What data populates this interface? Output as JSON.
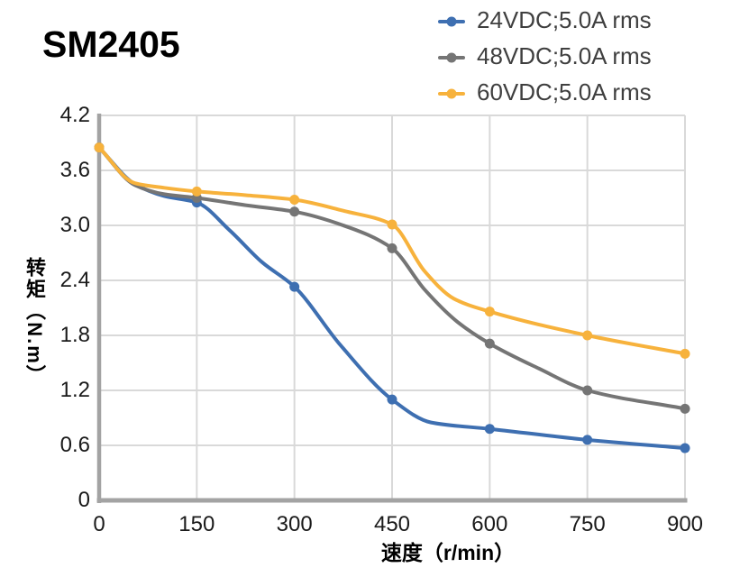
{
  "palette": {
    "grid": "#D9D9D9",
    "axis": "#A3A3A3",
    "tick_text": "#1A1A1A",
    "legend_text": "#3F3F3F",
    "title_text": "#000000",
    "axis_label_text": "#000000",
    "background": "#FFFFFF"
  },
  "chart_data": {
    "type": "line",
    "title": "SM2405",
    "xlabel": "速度（r/min）",
    "ylabel": "转矩（N.m）",
    "xlim": [
      0,
      900
    ],
    "ylim": [
      0,
      4.2
    ],
    "xtick_labels": [
      "0",
      "150",
      "300",
      "450",
      "600",
      "750",
      "900"
    ],
    "ytick_labels": [
      "4.2",
      "3.6",
      "3.0",
      "2.4",
      "1.8",
      "1.2",
      "0.6",
      "0"
    ],
    "ytick_values": [
      4.2,
      3.6,
      3.0,
      2.4,
      1.8,
      1.2,
      0.6,
      0
    ],
    "grid": true,
    "legend_position": "top-right",
    "marker": "circle",
    "smooth_curves": true,
    "categories": [
      0,
      150,
      300,
      450,
      600,
      750,
      900
    ],
    "series": [
      {
        "name": "24VDC;5.0A rms",
        "color": "#3E6FB1",
        "values": [
          3.85,
          3.25,
          2.33,
          1.1,
          0.78,
          0.66,
          0.57
        ],
        "curve_points": [
          [
            0,
            3.85
          ],
          [
            55,
            3.45
          ],
          [
            100,
            3.32
          ],
          [
            150,
            3.25
          ],
          [
            200,
            2.95
          ],
          [
            250,
            2.6
          ],
          [
            300,
            2.33
          ],
          [
            370,
            1.7
          ],
          [
            450,
            1.1
          ],
          [
            510,
            0.85
          ],
          [
            600,
            0.78
          ],
          [
            750,
            0.66
          ],
          [
            900,
            0.57
          ]
        ]
      },
      {
        "name": "48VDC;5.0A rms",
        "color": "#757575",
        "values": [
          3.85,
          3.3,
          3.15,
          2.75,
          1.71,
          1.2,
          1.0
        ],
        "curve_points": [
          [
            0,
            3.85
          ],
          [
            55,
            3.44
          ],
          [
            100,
            3.34
          ],
          [
            150,
            3.3
          ],
          [
            225,
            3.22
          ],
          [
            300,
            3.15
          ],
          [
            375,
            3.0
          ],
          [
            450,
            2.75
          ],
          [
            500,
            2.3
          ],
          [
            550,
            1.95
          ],
          [
            600,
            1.71
          ],
          [
            675,
            1.44
          ],
          [
            750,
            1.2
          ],
          [
            900,
            1.0
          ]
        ]
      },
      {
        "name": "60VDC;5.0A rms",
        "color": "#F7B23C",
        "values": [
          3.85,
          3.37,
          3.28,
          3.01,
          2.06,
          1.8,
          1.6
        ],
        "curve_points": [
          [
            0,
            3.85
          ],
          [
            55,
            3.46
          ],
          [
            100,
            3.41
          ],
          [
            150,
            3.37
          ],
          [
            225,
            3.33
          ],
          [
            300,
            3.28
          ],
          [
            375,
            3.16
          ],
          [
            450,
            3.01
          ],
          [
            500,
            2.5
          ],
          [
            545,
            2.2
          ],
          [
            600,
            2.06
          ],
          [
            750,
            1.8
          ],
          [
            900,
            1.6
          ]
        ]
      }
    ]
  }
}
